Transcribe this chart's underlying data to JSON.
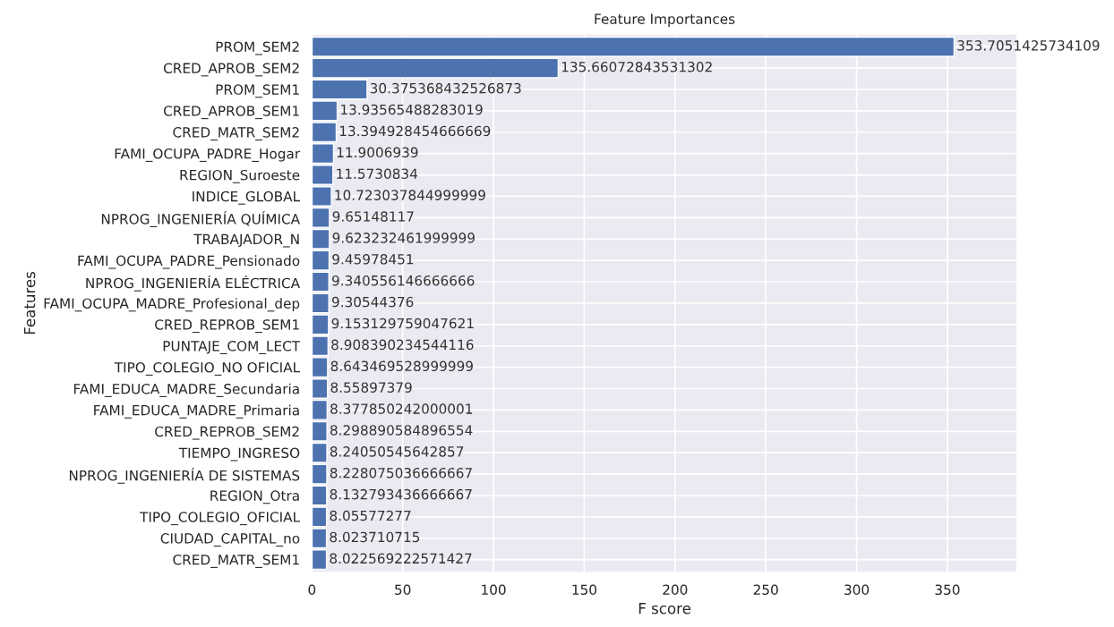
{
  "chart_data": {
    "type": "bar",
    "orientation": "horizontal",
    "title": "Feature Importances",
    "xlabel": "F score",
    "ylabel": "Features",
    "categories": [
      "PROM_SEM2",
      "CRED_APROB_SEM2",
      "PROM_SEM1",
      "CRED_APROB_SEM1",
      "CRED_MATR_SEM2",
      "FAMI_OCUPA_PADRE_Hogar",
      "REGION_Suroeste",
      "INDICE_GLOBAL",
      "NPROG_INGENIERÍA QUÍMICA",
      "TRABAJADOR_N",
      "FAMI_OCUPA_PADRE_Pensionado",
      "NPROG_INGENIERÍA ELÉCTRICA",
      "FAMI_OCUPA_MADRE_Profesional_dep",
      "CRED_REPROB_SEM1",
      "PUNTAJE_COM_LECT",
      "TIPO_COLEGIO_NO OFICIAL",
      "FAMI_EDUCA_MADRE_Secundaria",
      "FAMI_EDUCA_MADRE_Primaria",
      "CRED_REPROB_SEM2",
      "TIEMPO_INGRESO",
      "NPROG_INGENIERÍA DE SISTEMAS",
      "REGION_Otra",
      "TIPO_COLEGIO_OFICIAL",
      "CIUDAD_CAPITAL_no",
      "CRED_MATR_SEM1"
    ],
    "values": [
      353.7051425734109,
      135.66072843531302,
      30.375368432526873,
      13.93565488283019,
      13.394928454666669,
      11.9006939,
      11.5730834,
      10.723037844999999,
      9.65148117,
      9.623232461999999,
      9.45978451,
      9.340556146666666,
      9.30544376,
      9.153129759047621,
      8.908390234544116,
      8.643469528999999,
      8.55897379,
      8.377850242000001,
      8.298890584896554,
      8.24050545642857,
      8.228075036666667,
      8.132793436666667,
      8.05577277,
      8.023710715,
      8.022569222571427
    ],
    "color": "#4c72b0",
    "data_labels": true,
    "grid": true,
    "xlim": [
      0,
      388.4
    ],
    "xticks": [
      0,
      50,
      100,
      150,
      200,
      250,
      300,
      350
    ]
  }
}
